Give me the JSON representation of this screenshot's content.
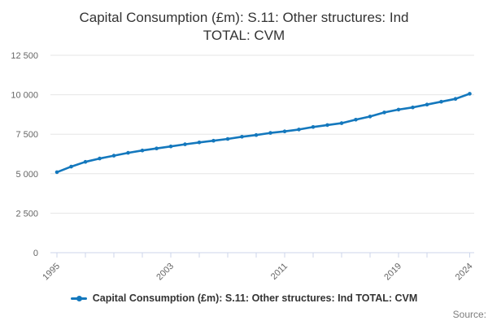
{
  "header": {
    "title_line1": "Capital Consumption (£m): S.11: Other structures: Ind",
    "title_line2": "TOTAL: CVM"
  },
  "legend": {
    "label": "Capital Consumption (£m): S.11: Other structures: Ind TOTAL: CVM"
  },
  "footer": {
    "source_label": "Source:"
  },
  "colors": {
    "series": "#1478bd",
    "grid": "#e6e6e6",
    "axis_line": "#ccd6eb",
    "axis_text": "#666666",
    "title_text": "#333333",
    "legend_text": "#333333",
    "source_text": "#7d7d7d"
  },
  "chart_data": {
    "type": "line",
    "title": "Capital Consumption (£m): S.11: Other structures: Ind TOTAL: CVM",
    "xlabel": "",
    "ylabel": "",
    "ylim": [
      0,
      12500
    ],
    "grid": "horizontal",
    "legend_position": "bottom",
    "marker": "circle",
    "x": [
      1995,
      1996,
      1997,
      1998,
      1999,
      2000,
      2001,
      2002,
      2003,
      2004,
      2005,
      2006,
      2007,
      2008,
      2009,
      2010,
      2011,
      2012,
      2013,
      2014,
      2015,
      2016,
      2017,
      2018,
      2019,
      2020,
      2021,
      2022,
      2023,
      2024
    ],
    "series": [
      {
        "name": "Capital Consumption (£m): S.11: Other structures: Ind TOTAL: CVM",
        "values": [
          5100,
          5450,
          5750,
          5960,
          6140,
          6320,
          6470,
          6600,
          6730,
          6860,
          6980,
          7090,
          7200,
          7340,
          7450,
          7580,
          7680,
          7800,
          7960,
          8080,
          8200,
          8420,
          8620,
          8880,
          9060,
          9200,
          9380,
          9560,
          9740,
          10060
        ]
      }
    ],
    "y_ticks": [
      {
        "value": 0,
        "label": "0"
      },
      {
        "value": 2500,
        "label": "2 500"
      },
      {
        "value": 5000,
        "label": "5 000"
      },
      {
        "value": 7500,
        "label": "7 500"
      },
      {
        "value": 10000,
        "label": "10 000"
      },
      {
        "value": 12500,
        "label": "12 500"
      }
    ],
    "x_tick_years": [
      1995,
      1997,
      1999,
      2001,
      2003,
      2005,
      2007,
      2009,
      2011,
      2013,
      2015,
      2017,
      2019,
      2021,
      2024
    ],
    "x_axis_labels": [
      {
        "year": 1995,
        "label": "1995"
      },
      {
        "year": 2003,
        "label": "2003"
      },
      {
        "year": 2011,
        "label": "2011"
      },
      {
        "year": 2019,
        "label": "2019"
      },
      {
        "year": 2024,
        "label": "2024"
      }
    ]
  }
}
